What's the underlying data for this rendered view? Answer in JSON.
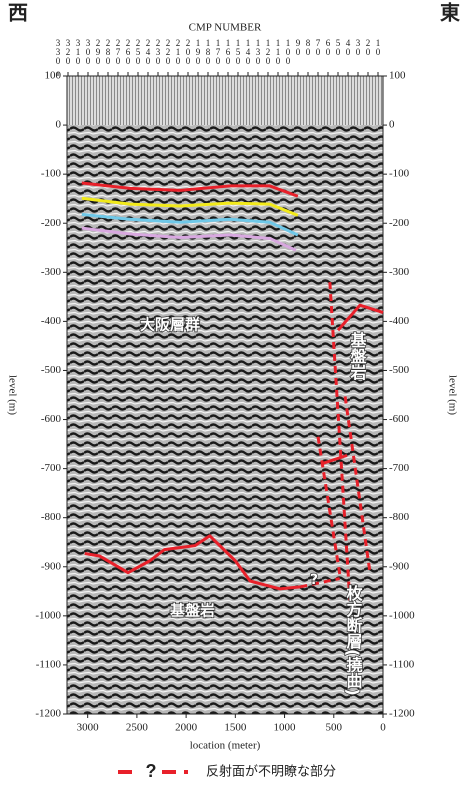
{
  "chart_data": {
    "type": "line",
    "corner_labels": [
      "西",
      "東"
    ],
    "x2label": "CMP NUMBER",
    "ylabel": "level (m)",
    "xlabel": "location (meter)",
    "xlim": [
      3210,
      0
    ],
    "xticks": [
      3000,
      2500,
      2000,
      1500,
      1000,
      500,
      0
    ],
    "ylim": [
      -1200,
      100
    ],
    "yticks": [
      100,
      0,
      -100,
      -200,
      -300,
      -400,
      -500,
      -600,
      -700,
      -800,
      -900,
      -1000,
      -1100,
      -1200
    ],
    "x2lim": [
      321,
      5
    ],
    "x2ticks": [
      330,
      320,
      310,
      300,
      290,
      280,
      270,
      260,
      250,
      240,
      230,
      220,
      210,
      200,
      190,
      180,
      170,
      160,
      150,
      140,
      130,
      120,
      110,
      100,
      90,
      80,
      70,
      60,
      50,
      40,
      30,
      20,
      10
    ],
    "series": [
      {
        "color": "#e8202a",
        "x": [
          3060,
          2570,
          2060,
          1555,
          1150,
          865
        ],
        "values": [
          -118,
          -129,
          -133,
          -124,
          -124,
          -145
        ]
      },
      {
        "color": "#f2ea1a",
        "x": [
          3060,
          2570,
          2060,
          1555,
          1150,
          865
        ],
        "values": [
          -149,
          -161,
          -165,
          -159,
          -161,
          -184
        ]
      },
      {
        "color": "#6fc8e8",
        "x": [
          3060,
          2570,
          2060,
          1555,
          1150,
          865
        ],
        "values": [
          -182,
          -192,
          -198,
          -192,
          -198,
          -224
        ]
      },
      {
        "color": "#d8a8e0",
        "x": [
          3060,
          2570,
          2060,
          1555,
          1150,
          885
        ],
        "values": [
          -210,
          -222,
          -229,
          -224,
          -231,
          -255
        ]
      },
      {
        "color": "#e8202a",
        "x": [
          3030,
          2880,
          2590,
          2370,
          2220,
          1910,
          1760,
          1500,
          1350,
          1050,
          840
        ],
        "values": [
          -873,
          -878,
          -912,
          -888,
          -865,
          -857,
          -837,
          -888,
          -929,
          -945,
          -941
        ]
      },
      {
        "color": "#e8202a",
        "dashed": true,
        "x": [
          840,
          440
        ],
        "values": [
          -941,
          -924
        ]
      },
      {
        "color": "#e8202a",
        "x": [
          457,
          234,
          0
        ],
        "values": [
          -418,
          -367,
          -382
        ]
      },
      {
        "color": "#e8202a",
        "x": [
          620,
          365
        ],
        "values": [
          -690,
          -673
        ]
      },
      {
        "color": "#e8202a",
        "dashed": true,
        "x": [
          540,
          335
        ],
        "values": [
          -320,
          -975
        ]
      },
      {
        "color": "#e8202a",
        "dashed": true,
        "x": [
          660,
          435
        ],
        "values": [
          -635,
          -920
        ]
      },
      {
        "color": "#e8202a",
        "dashed": true,
        "x": [
          385,
          130
        ],
        "values": [
          -553,
          -915
        ]
      }
    ],
    "annotations": [
      "大阪層群",
      "基盤岩",
      "基盤岩",
      "枚方断層(撓曲)",
      "?"
    ],
    "legend": {
      "label": "反射面が不明瞭な部分",
      "symbol": "?"
    }
  }
}
